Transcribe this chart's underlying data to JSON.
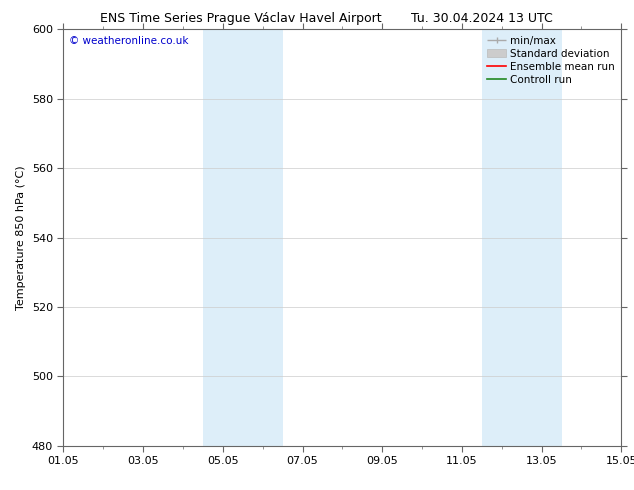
{
  "title_left": "ENS Time Series Prague Václav Havel Airport",
  "title_right": "Tu. 30.04.2024 13 UTC",
  "ylabel": "Temperature 850 hPa (°C)",
  "watermark": "© weatheronline.co.uk",
  "watermark_color": "#0000cc",
  "ylim": [
    480,
    600
  ],
  "yticks": [
    480,
    500,
    520,
    540,
    560,
    580,
    600
  ],
  "xtick_labels": [
    "01.05",
    "03.05",
    "05.05",
    "07.05",
    "09.05",
    "11.05",
    "13.05",
    "15.05"
  ],
  "xtick_positions": [
    0,
    2,
    4,
    6,
    8,
    10,
    12,
    14
  ],
  "shaded_bands": [
    {
      "x_start": 3.5,
      "x_end": 5.5,
      "color": "#ddeef9"
    },
    {
      "x_start": 10.5,
      "x_end": 12.5,
      "color": "#ddeef9"
    }
  ],
  "bg_color": "#ffffff",
  "plot_bg_color": "#ffffff",
  "grid_color": "#cccccc",
  "title_fontsize": 9,
  "label_fontsize": 8,
  "tick_fontsize": 8,
  "legend_fontsize": 7.5,
  "x_days": 14,
  "minmax_color": "#aaaaaa",
  "std_color": "#cccccc",
  "ensemble_color": "#ff0000",
  "control_color": "#228822"
}
